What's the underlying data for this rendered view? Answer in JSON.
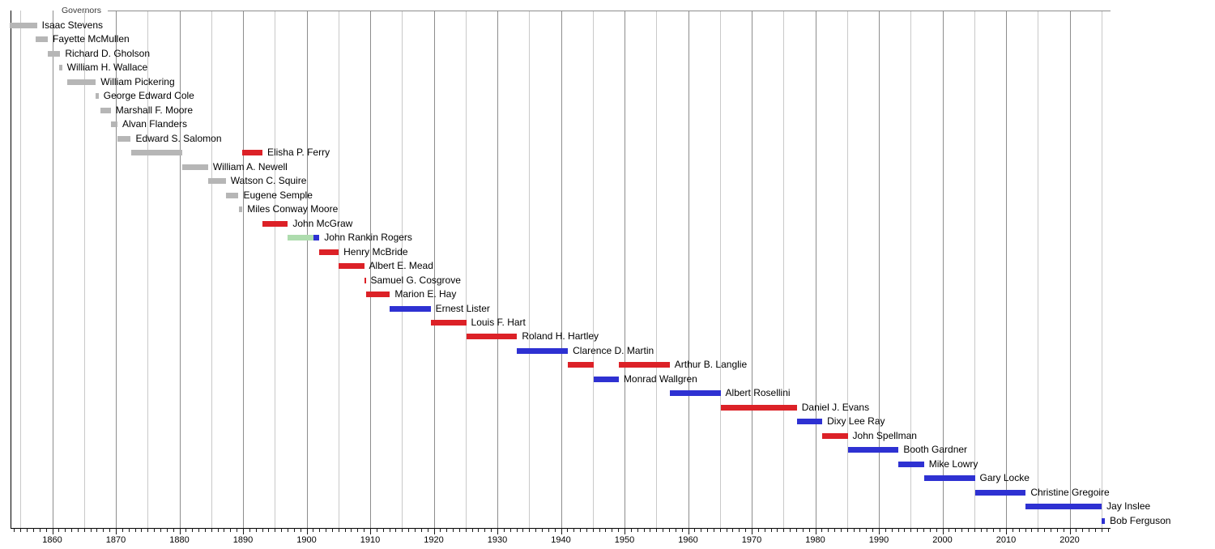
{
  "chart_data": {
    "type": "bar",
    "variant": "gantt-timeline",
    "title": "Governors",
    "xlabel": "",
    "ylabel": "",
    "legend_position": "top-left",
    "grid": true,
    "x_axis": {
      "min_year": 1853.4,
      "max_year": 2026.2,
      "tick_labels": [
        1860,
        1870,
        1880,
        1890,
        1900,
        1910,
        1920,
        1930,
        1940,
        1950,
        1960,
        1970,
        1980,
        1990,
        2000,
        2010,
        2020
      ],
      "minor_tick_interval_years": 1,
      "minor_tick_first_year": 1854,
      "minor_tick_last_year": 2026,
      "gridline_interval_years": 5,
      "gridline_first_year": 1855,
      "gridline_last_year": 2025
    },
    "party_colors": {
      "territorial": "#b6b6b6",
      "republican": "#dc2127",
      "democratic": "#2e31d2",
      "populist": "#aedcae"
    },
    "rows": [
      {
        "name": "Isaac Stevens",
        "segments": [
          {
            "start": 1853.25,
            "end": 1857.6,
            "party": "territorial"
          }
        ]
      },
      {
        "name": "Fayette McMullen",
        "segments": [
          {
            "start": 1857.35,
            "end": 1859.3,
            "party": "territorial"
          }
        ]
      },
      {
        "name": "Richard D. Gholson",
        "segments": [
          {
            "start": 1859.3,
            "end": 1861.25,
            "party": "territorial"
          }
        ]
      },
      {
        "name": "William H. Wallace",
        "segments": [
          {
            "start": 1861.1,
            "end": 1861.55,
            "party": "territorial"
          }
        ]
      },
      {
        "name": "William Pickering",
        "segments": [
          {
            "start": 1862.4,
            "end": 1866.85,
            "party": "territorial"
          }
        ]
      },
      {
        "name": "George Edward Cole",
        "segments": [
          {
            "start": 1866.85,
            "end": 1867.3,
            "party": "territorial"
          }
        ]
      },
      {
        "name": "Marshall F. Moore",
        "segments": [
          {
            "start": 1867.6,
            "end": 1869.2,
            "party": "territorial"
          }
        ]
      },
      {
        "name": "Alvan Flanders",
        "segments": [
          {
            "start": 1869.2,
            "end": 1870.25,
            "party": "territorial"
          }
        ]
      },
      {
        "name": "Edward S. Salomon",
        "segments": [
          {
            "start": 1870.3,
            "end": 1872.35,
            "party": "territorial"
          }
        ]
      },
      {
        "name": "Elisha P. Ferry",
        "segments": [
          {
            "start": 1872.4,
            "end": 1880.5,
            "party": "territorial"
          },
          {
            "start": 1889.9,
            "end": 1893.05,
            "party": "republican"
          }
        ]
      },
      {
        "name": "William A. Newell",
        "segments": [
          {
            "start": 1880.5,
            "end": 1884.5,
            "party": "territorial"
          }
        ]
      },
      {
        "name": "Watson C. Squire",
        "segments": [
          {
            "start": 1884.55,
            "end": 1887.3,
            "party": "territorial"
          }
        ]
      },
      {
        "name": "Eugene Semple",
        "segments": [
          {
            "start": 1887.3,
            "end": 1889.3,
            "party": "territorial"
          }
        ]
      },
      {
        "name": "Miles Conway Moore",
        "segments": [
          {
            "start": 1889.3,
            "end": 1889.9,
            "party": "territorial"
          }
        ]
      },
      {
        "name": "John McGraw",
        "segments": [
          {
            "start": 1893.05,
            "end": 1897.05,
            "party": "republican"
          }
        ]
      },
      {
        "name": "John Rankin Rogers",
        "segments": [
          {
            "start": 1897.05,
            "end": 1901.1,
            "party": "populist"
          },
          {
            "start": 1901.1,
            "end": 1902.0,
            "party": "democratic"
          }
        ]
      },
      {
        "name": "Henry McBride",
        "segments": [
          {
            "start": 1902.0,
            "end": 1905.05,
            "party": "republican"
          }
        ]
      },
      {
        "name": "Albert E. Mead",
        "segments": [
          {
            "start": 1905.05,
            "end": 1909.05,
            "party": "republican"
          }
        ]
      },
      {
        "name": "Samuel G. Cosgrove",
        "segments": [
          {
            "start": 1909.05,
            "end": 1909.3,
            "party": "republican"
          }
        ]
      },
      {
        "name": "Marion E. Hay",
        "segments": [
          {
            "start": 1909.3,
            "end": 1913.1,
            "party": "republican"
          }
        ]
      },
      {
        "name": "Ernest Lister",
        "segments": [
          {
            "start": 1913.1,
            "end": 1919.5,
            "party": "democratic"
          }
        ]
      },
      {
        "name": "Louis F. Hart",
        "segments": [
          {
            "start": 1919.5,
            "end": 1925.1,
            "party": "republican"
          }
        ]
      },
      {
        "name": "Roland H. Hartley",
        "segments": [
          {
            "start": 1925.1,
            "end": 1933.1,
            "party": "republican"
          }
        ]
      },
      {
        "name": "Clarence D. Martin",
        "segments": [
          {
            "start": 1933.1,
            "end": 1941.1,
            "party": "democratic"
          }
        ]
      },
      {
        "name": "Arthur B. Langlie",
        "segments": [
          {
            "start": 1941.1,
            "end": 1945.1,
            "party": "republican"
          },
          {
            "start": 1949.1,
            "end": 1957.1,
            "party": "republican"
          }
        ]
      },
      {
        "name": "Monrad Wallgren",
        "segments": [
          {
            "start": 1945.1,
            "end": 1949.1,
            "party": "democratic"
          }
        ]
      },
      {
        "name": "Albert Rosellini",
        "segments": [
          {
            "start": 1957.1,
            "end": 1965.1,
            "party": "democratic"
          }
        ]
      },
      {
        "name": "Daniel J. Evans",
        "segments": [
          {
            "start": 1965.1,
            "end": 1977.1,
            "party": "republican"
          }
        ]
      },
      {
        "name": "Dixy Lee Ray",
        "segments": [
          {
            "start": 1977.1,
            "end": 1981.1,
            "party": "democratic"
          }
        ]
      },
      {
        "name": "John Spellman",
        "segments": [
          {
            "start": 1981.1,
            "end": 1985.1,
            "party": "republican"
          }
        ]
      },
      {
        "name": "Booth Gardner",
        "segments": [
          {
            "start": 1985.1,
            "end": 1993.1,
            "party": "democratic"
          }
        ]
      },
      {
        "name": "Mike Lowry",
        "segments": [
          {
            "start": 1993.1,
            "end": 1997.1,
            "party": "democratic"
          }
        ]
      },
      {
        "name": "Gary Locke",
        "segments": [
          {
            "start": 1997.1,
            "end": 2005.1,
            "party": "democratic"
          }
        ]
      },
      {
        "name": "Christine Gregoire",
        "segments": [
          {
            "start": 2005.1,
            "end": 2013.1,
            "party": "democratic"
          }
        ]
      },
      {
        "name": "Jay Inslee",
        "segments": [
          {
            "start": 2013.1,
            "end": 2025.05,
            "party": "democratic"
          }
        ]
      },
      {
        "name": "Bob Ferguson",
        "segments": [
          {
            "start": 2025.05,
            "end": 2025.55,
            "party": "democratic"
          }
        ]
      }
    ]
  }
}
